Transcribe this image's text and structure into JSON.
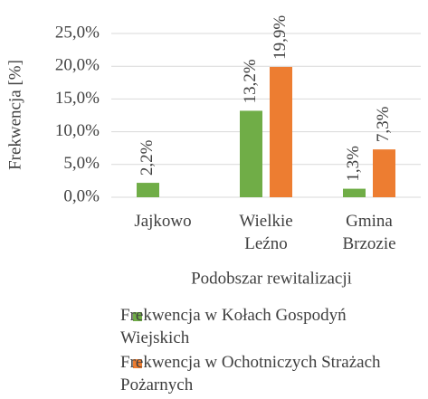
{
  "chart_data": {
    "type": "bar",
    "y_axis_label": "Frekwencja [%]",
    "x_axis_label": "Podobszar rewitalizacji",
    "categories": [
      "Jajkowo",
      "Wielkie Leźno",
      "Gmina Brzozie"
    ],
    "series": [
      {
        "name": "Frekwencja w Kołach Gospodyń Wiejskich",
        "color": "#70ad47",
        "values": [
          2.2,
          13.2,
          1.3
        ],
        "value_labels": [
          "2,2%",
          "13,2%",
          "1,3%"
        ]
      },
      {
        "name": "Frekwencja w Ochotniczych Strażach Pożarnych",
        "color": "#ed7d31",
        "values": [
          null,
          19.9,
          7.3
        ],
        "value_labels": [
          null,
          "19,9%",
          "7,3%"
        ]
      }
    ],
    "ylim": [
      0,
      25
    ],
    "yticks": [
      {
        "value": 0,
        "label": "0,0%"
      },
      {
        "value": 5,
        "label": "5,0%"
      },
      {
        "value": 10,
        "label": "10,0%"
      },
      {
        "value": 15,
        "label": "15,0%"
      },
      {
        "value": 20,
        "label": "20,0%"
      },
      {
        "value": 25,
        "label": "25,0%"
      }
    ],
    "grid": true,
    "legend": "bottom"
  }
}
